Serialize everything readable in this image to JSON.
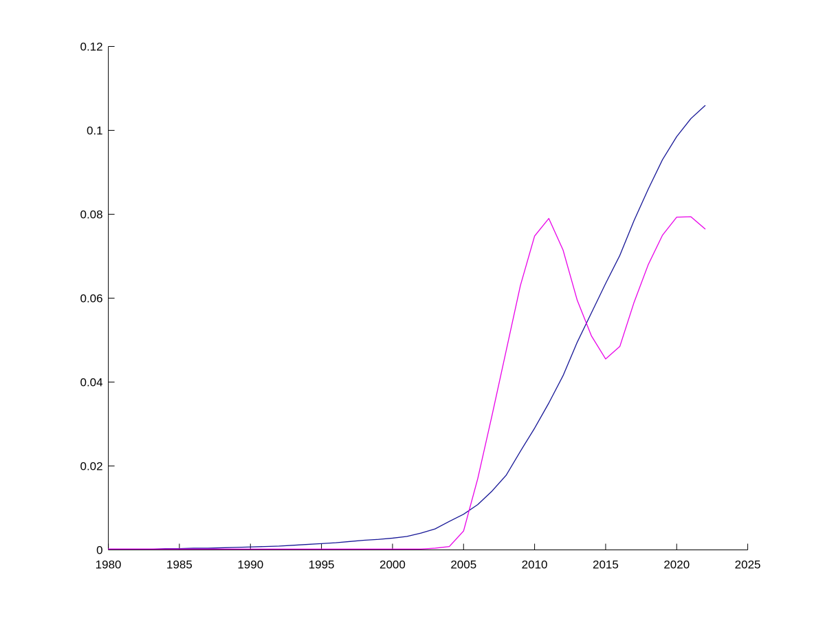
{
  "figure": {
    "background": "#ffffff",
    "axis_color": "#000000"
  },
  "chart_data": {
    "type": "line",
    "title": "",
    "xlabel": "",
    "ylabel": "",
    "xlim": [
      1980,
      2025
    ],
    "ylim": [
      0,
      0.12
    ],
    "x_ticks": [
      1980,
      1985,
      1990,
      1995,
      2000,
      2005,
      2010,
      2015,
      2020,
      2025
    ],
    "x_tick_labels": [
      "1980",
      "1985",
      "1990",
      "1995",
      "2000",
      "2005",
      "2010",
      "2015",
      "2020",
      "2025"
    ],
    "y_ticks": [
      0,
      0.02,
      0.04,
      0.06,
      0.08,
      0.1,
      0.12
    ],
    "y_tick_labels": [
      "0",
      "0.02",
      "0.04",
      "0.06",
      "0.08",
      "0.1",
      "0.12"
    ],
    "grid": false,
    "legend_position": "none",
    "box": false,
    "tick_direction": "in",
    "x": [
      1980,
      1981,
      1982,
      1983,
      1984,
      1985,
      1986,
      1987,
      1988,
      1989,
      1990,
      1991,
      1992,
      1993,
      1994,
      1995,
      1996,
      1997,
      1998,
      1999,
      2000,
      2001,
      2002,
      2003,
      2004,
      2005,
      2006,
      2007,
      2008,
      2009,
      2010,
      2011,
      2012,
      2013,
      2014,
      2015,
      2016,
      2017,
      2018,
      2019,
      2020,
      2021,
      2022
    ],
    "series": [
      {
        "name": "smooth-dark-blue-curve",
        "color": "#151596",
        "values": [
          0.0002,
          0.0002,
          0.0002,
          0.0002,
          0.0003,
          0.0003,
          0.0004,
          0.0004,
          0.0005,
          0.0006,
          0.0007,
          0.0008,
          0.0009,
          0.0011,
          0.0013,
          0.0015,
          0.0017,
          0.002,
          0.0023,
          0.0025,
          0.0028,
          0.0032,
          0.004,
          0.005,
          0.0068,
          0.0085,
          0.0108,
          0.014,
          0.0178,
          0.0235,
          0.029,
          0.035,
          0.0415,
          0.0495,
          0.0565,
          0.0635,
          0.0702,
          0.0785,
          0.086,
          0.093,
          0.0985,
          0.1028,
          0.1059
        ]
      },
      {
        "name": "magenta-curve",
        "color": "#e800e8",
        "values": [
          0.0002,
          0.0002,
          0.0002,
          0.0002,
          0.0002,
          0.0002,
          0.0002,
          0.0002,
          0.0002,
          0.0002,
          0.0002,
          0.0002,
          0.0002,
          0.0002,
          0.0002,
          0.0002,
          0.0002,
          0.0002,
          0.0002,
          0.0002,
          0.0002,
          0.0002,
          0.0002,
          0.0004,
          0.0008,
          0.0045,
          0.017,
          0.032,
          0.0475,
          0.063,
          0.0748,
          0.079,
          0.0715,
          0.0595,
          0.051,
          0.0455,
          0.0485,
          0.059,
          0.068,
          0.075,
          0.0793,
          0.0794,
          0.0765
        ]
      }
    ]
  }
}
